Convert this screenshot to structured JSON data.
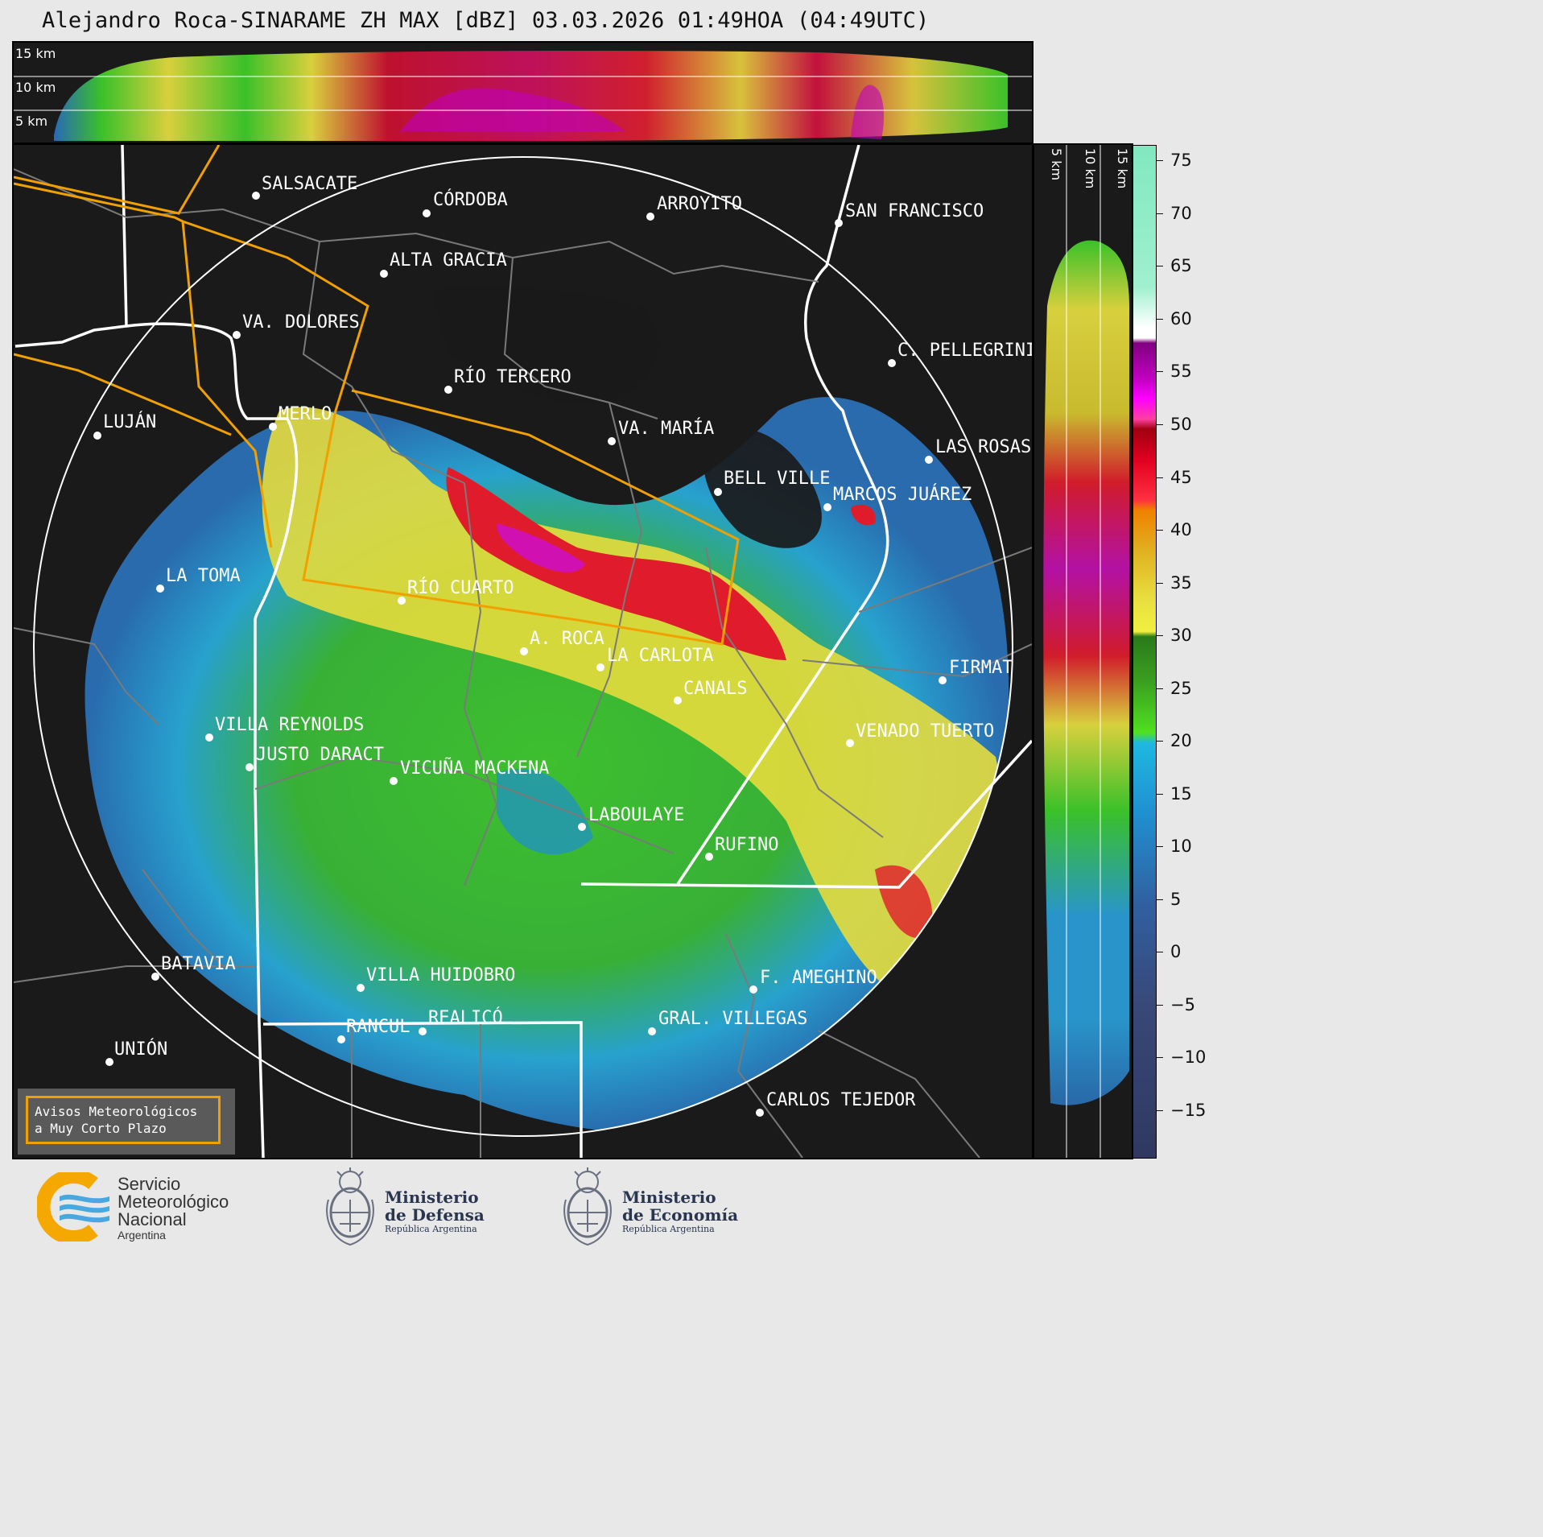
{
  "title": "Alejandro Roca-SINARAME ZH MAX [dBZ] 03.03.2026 01:49HOA (04:49UTC)",
  "top_panel": {
    "height_labels": [
      "15 km",
      "10 km",
      "5 km"
    ]
  },
  "right_panel": {
    "height_labels": [
      "5 km",
      "10 km",
      "15 km"
    ]
  },
  "colorbar": {
    "unit": "dBZ",
    "ticks": [
      "75",
      "70",
      "65",
      "60",
      "55",
      "50",
      "45",
      "40",
      "35",
      "30",
      "25",
      "20",
      "15",
      "10",
      "5",
      "0",
      "−5",
      "−10",
      "−15"
    ]
  },
  "cities": [
    "SALSACATE",
    "CÓRDOBA",
    "ARROYITO",
    "SAN FRANCISCO",
    "ALTA GRACIA",
    "VA. DOLORES",
    "C. PELLEGRINI",
    "RÍO TERCERO",
    "LUJÁN",
    "MERLO",
    "VA. MARÍA",
    "LAS ROSAS",
    "BELL VILLE",
    "MARCOS JUÁREZ",
    "LA TOMA",
    "RÍO CUARTO",
    "A. ROCA",
    "LA CARLOTA",
    "FIRMAT",
    "CANALS",
    "VILLA REYNOLDS",
    "VENADO TUERTO",
    "JUSTO DARACT",
    "VICUÑA MACKENA",
    "LABOULAYE",
    "RUFINO",
    "BATAVIA",
    "VILLA HUIDOBRO",
    "F. AMEGHINO",
    "REALICÓ",
    "RANCUL",
    "GRAL. VILLEGAS",
    "UNIÓN",
    "CARLOS TEJEDOR"
  ],
  "warning_box": {
    "line1": "Avisos Meteorológicos",
    "line2": "a Muy Corto Plazo"
  },
  "logos": {
    "smn": {
      "line1": "Servicio",
      "line2": "Meteorológico",
      "line3": "Nacional",
      "line4": "Argentina"
    },
    "defensa": {
      "line1": "Ministerio",
      "line2": "de Defensa",
      "line3": "República Argentina"
    },
    "economia": {
      "line1": "Ministerio",
      "line2": "de Economía",
      "line3": "República Argentina"
    }
  },
  "colors": {
    "panel_bg": "#1a1a1a",
    "orange_warning": "#f0a000",
    "range_ring": "#ffffff"
  }
}
